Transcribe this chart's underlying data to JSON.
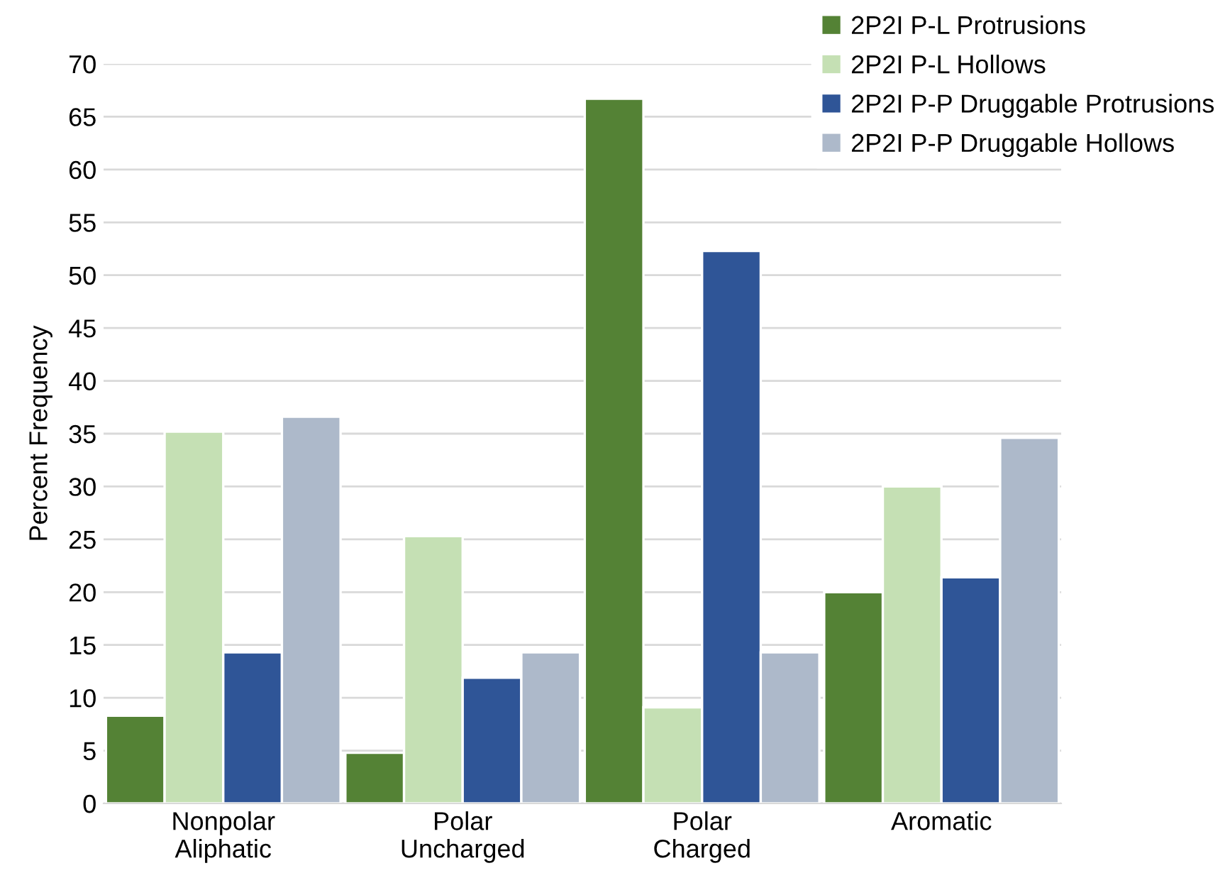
{
  "chart_data": {
    "type": "bar",
    "ylabel": "Percent Frequency",
    "categories": [
      "Nonpolar\nAliphatic",
      "Polar\nUncharged",
      "Polar\nCharged",
      "Aromatic"
    ],
    "series": [
      {
        "name": "2P2I P-L Protrusions",
        "color": "#548235",
        "values": [
          8.3,
          4.8,
          66.7,
          20.0
        ]
      },
      {
        "name": "2P2I P-L Hollows",
        "color": "#c5e0b4",
        "values": [
          35.2,
          25.3,
          9.1,
          30.0
        ]
      },
      {
        "name": "2P2I P-P Druggable Protrusions",
        "color": "#2f5597",
        "values": [
          14.3,
          11.9,
          52.3,
          21.4
        ]
      },
      {
        "name": "2P2I P-P Druggable Hollows",
        "color": "#adb9ca",
        "values": [
          36.6,
          14.3,
          14.3,
          34.6
        ]
      }
    ],
    "ylim": [
      0,
      70
    ],
    "yticks": [
      0,
      5,
      10,
      15,
      20,
      25,
      30,
      35,
      40,
      45,
      50,
      55,
      60,
      65,
      70
    ],
    "grid": "y",
    "legend": "top right"
  }
}
